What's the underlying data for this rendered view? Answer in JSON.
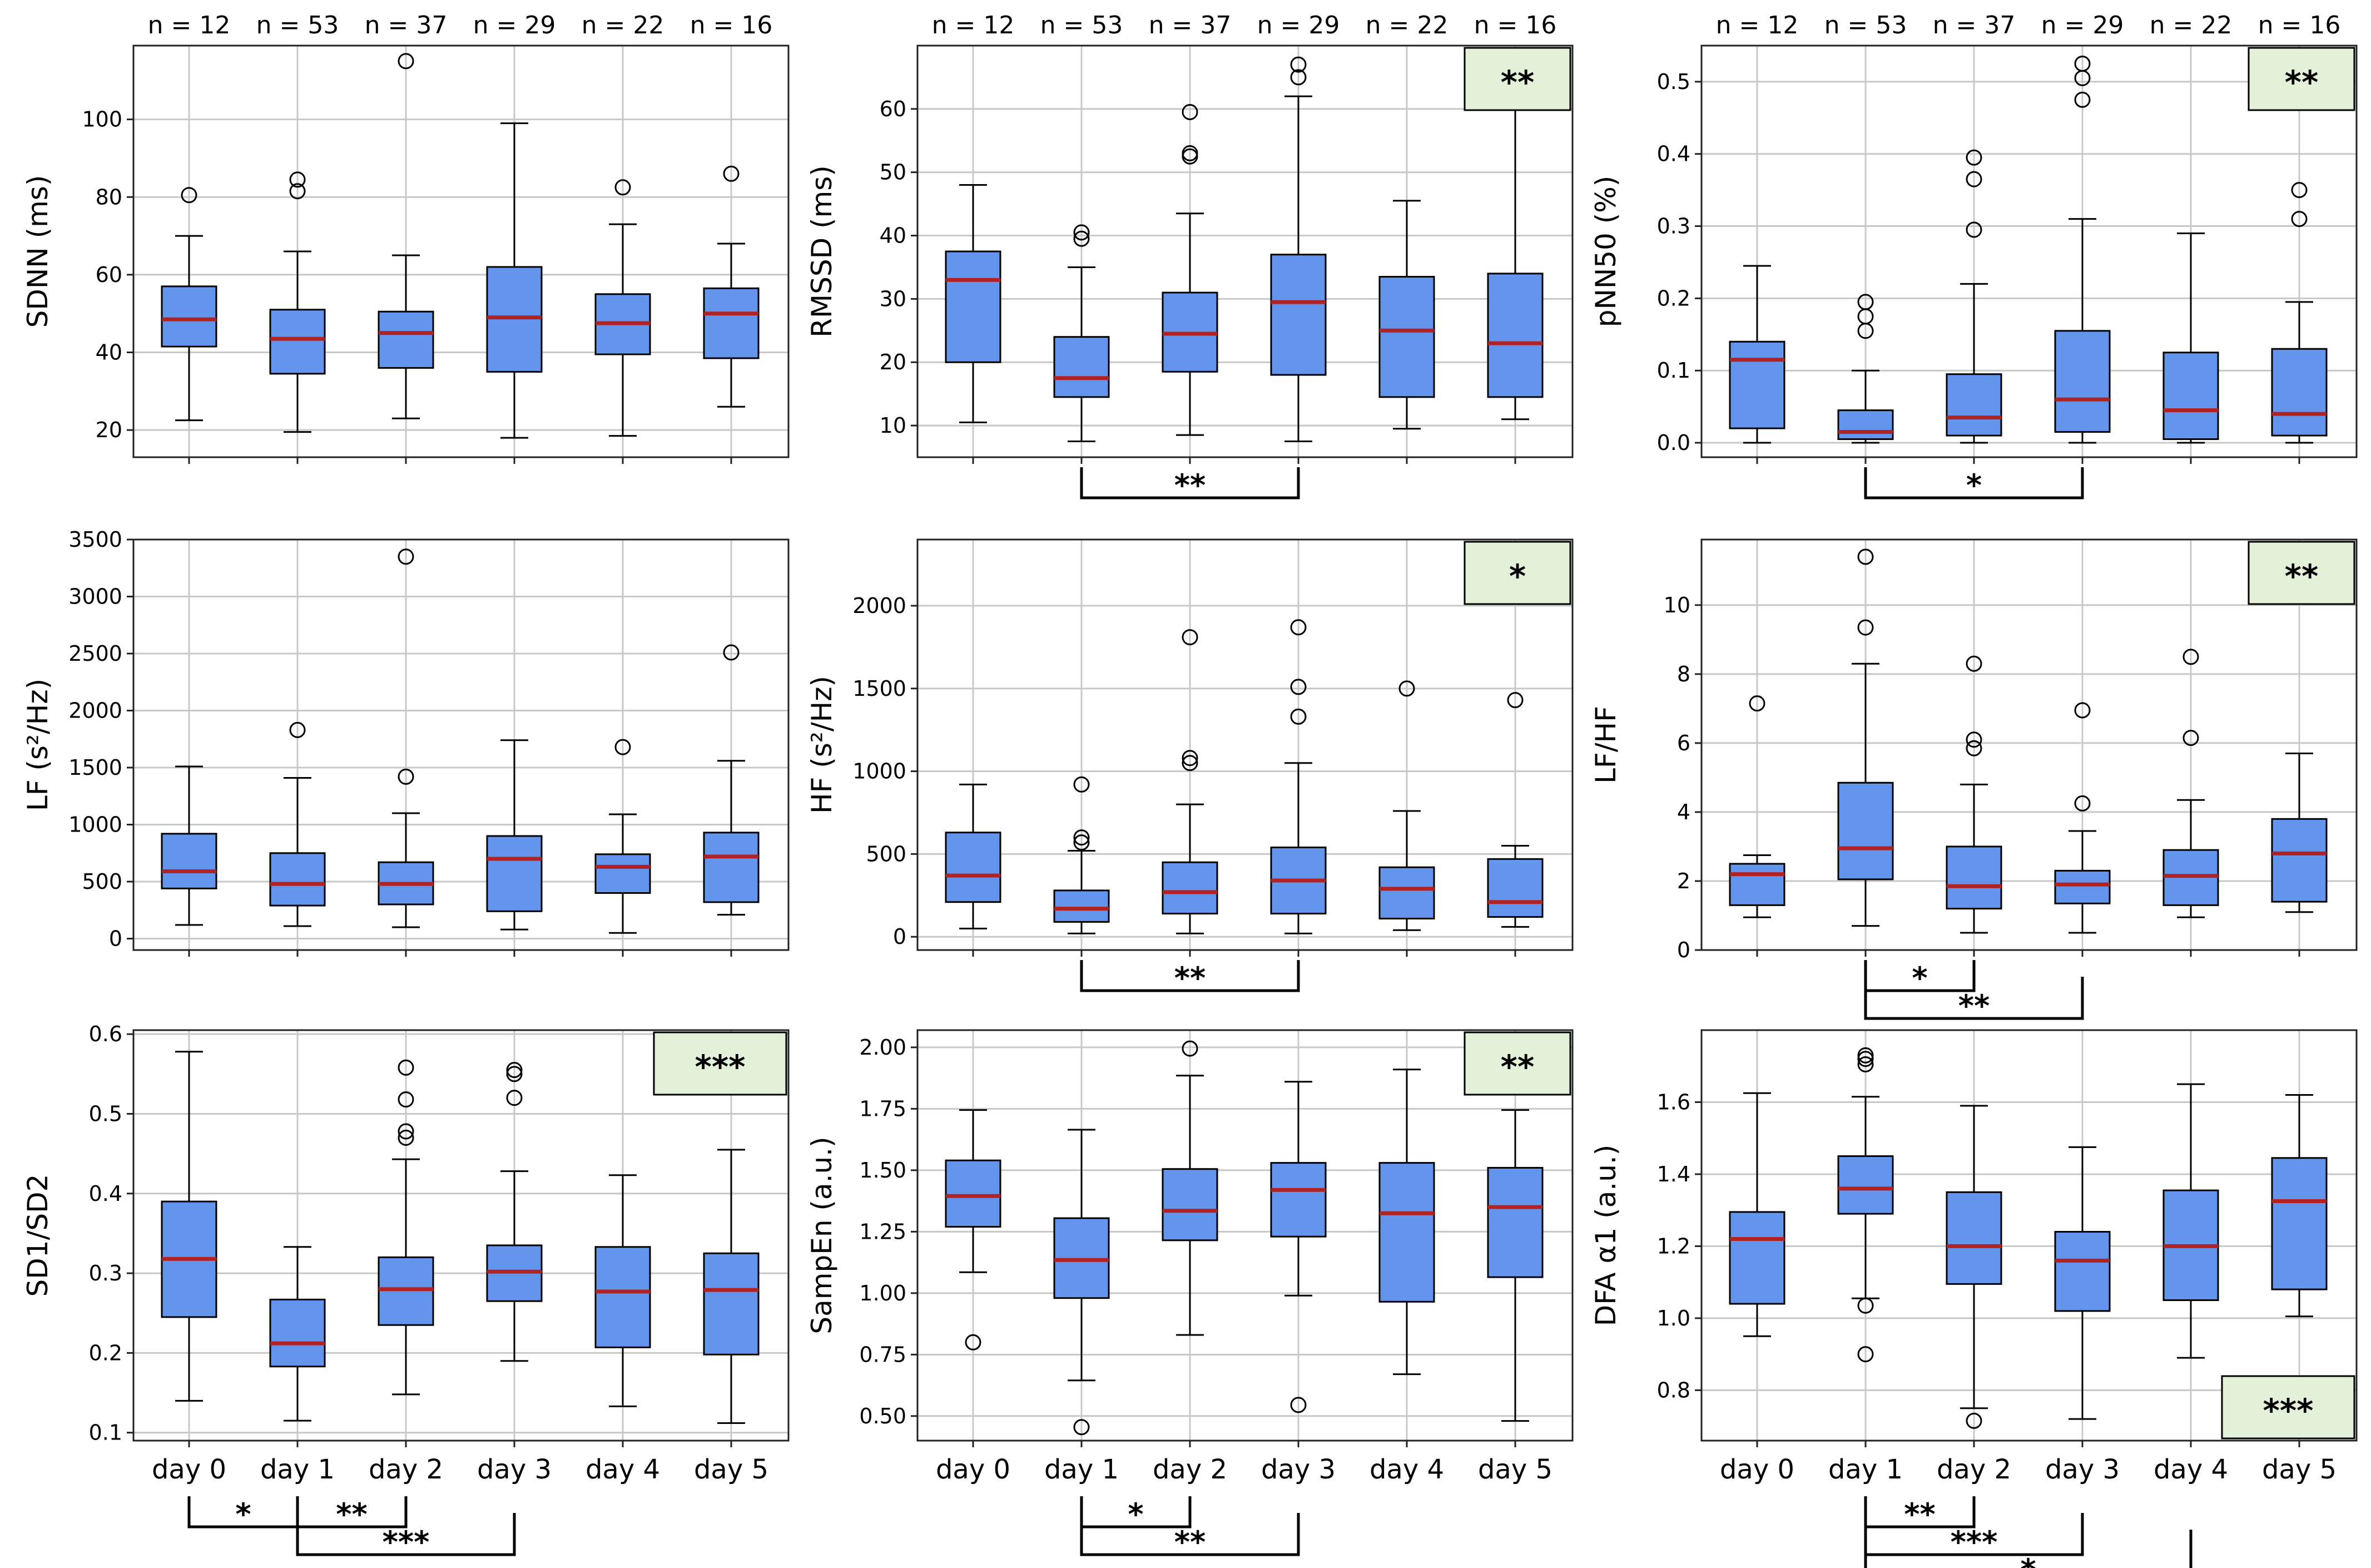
{
  "figure": {
    "days": [
      "day 0",
      "day 1",
      "day 2",
      "day 3",
      "day 4",
      "day 5"
    ],
    "n_labels": [
      "n = 12",
      "n = 53",
      "n = 37",
      "n = 29",
      "n = 22",
      "n = 16"
    ],
    "colors": {
      "box": "#6495ED",
      "median": "#B22222",
      "grid": "#c8c8c8",
      "badge": "#E3F1D9",
      "frame": "#222222"
    }
  },
  "chart_data": [
    {
      "id": "sdnn",
      "type": "box",
      "ylabel": "SDNN (ms)",
      "ylim": [
        13,
        119
      ],
      "yticks": [
        20,
        40,
        60,
        80,
        100
      ],
      "tick_labels": [
        "20",
        "40",
        "60",
        "80",
        "100"
      ],
      "boxes": [
        {
          "whislo": 22.5,
          "q1": 41.5,
          "med": 48.5,
          "q3": 57,
          "whishi": 70,
          "fliers": [
            80.5
          ]
        },
        {
          "whislo": 19.5,
          "q1": 34.5,
          "med": 43.5,
          "q3": 51,
          "whishi": 66,
          "fliers": [
            81.5,
            84.5
          ]
        },
        {
          "whislo": 23,
          "q1": 36,
          "med": 45,
          "q3": 50.5,
          "whishi": 65,
          "fliers": [
            115
          ]
        },
        {
          "whislo": 18,
          "q1": 35,
          "med": 49,
          "q3": 62,
          "whishi": 99,
          "fliers": []
        },
        {
          "whislo": 18.5,
          "q1": 39.5,
          "med": 47.5,
          "q3": 55,
          "whishi": 73,
          "fliers": [
            82.5
          ]
        },
        {
          "whislo": 26,
          "q1": 38.5,
          "med": 50,
          "q3": 56.5,
          "whishi": 68,
          "fliers": [
            86
          ]
        }
      ],
      "brackets": [],
      "badge": null
    },
    {
      "id": "rmssd",
      "type": "box",
      "ylabel": "RMSSD (ms)",
      "ylim": [
        5,
        70
      ],
      "yticks": [
        10,
        20,
        30,
        40,
        50,
        60
      ],
      "tick_labels": [
        "10",
        "20",
        "30",
        "40",
        "50",
        "60"
      ],
      "boxes": [
        {
          "whislo": 10.5,
          "q1": 20,
          "med": 33,
          "q3": 37.5,
          "whishi": 48,
          "fliers": []
        },
        {
          "whislo": 7.5,
          "q1": 14.5,
          "med": 17.5,
          "q3": 24,
          "whishi": 35,
          "fliers": [
            39.5,
            40.5
          ]
        },
        {
          "whislo": 8.5,
          "q1": 18.5,
          "med": 24.5,
          "q3": 31,
          "whishi": 43.5,
          "fliers": [
            52.5,
            53,
            59.5
          ]
        },
        {
          "whislo": 7.5,
          "q1": 18,
          "med": 29.5,
          "q3": 37,
          "whishi": 62,
          "fliers": [
            65,
            67
          ]
        },
        {
          "whislo": 9.5,
          "q1": 14.5,
          "med": 25,
          "q3": 33.5,
          "whishi": 45.5,
          "fliers": []
        },
        {
          "whislo": 11,
          "q1": 14.5,
          "med": 23,
          "q3": 34,
          "whishi": 60.5,
          "fliers": []
        }
      ],
      "brackets": [
        {
          "from": 1,
          "to": 3,
          "label": "**",
          "level": 0
        }
      ],
      "badge": {
        "label": "**",
        "pos": "top-right"
      }
    },
    {
      "id": "pnn50",
      "type": "box",
      "ylabel": "pNN50 (%)",
      "ylim": [
        -0.02,
        0.55
      ],
      "yticks": [
        0,
        0.1,
        0.2,
        0.3,
        0.4,
        0.5
      ],
      "tick_labels": [
        "0.0",
        "0.1",
        "0.2",
        "0.3",
        "0.4",
        "0.5"
      ],
      "boxes": [
        {
          "whislo": 0,
          "q1": 0.02,
          "med": 0.115,
          "q3": 0.14,
          "whishi": 0.245,
          "fliers": []
        },
        {
          "whislo": 0,
          "q1": 0.005,
          "med": 0.015,
          "q3": 0.045,
          "whishi": 0.1,
          "fliers": [
            0.155,
            0.175,
            0.195
          ]
        },
        {
          "whislo": 0,
          "q1": 0.01,
          "med": 0.035,
          "q3": 0.095,
          "whishi": 0.22,
          "fliers": [
            0.295,
            0.365,
            0.395
          ]
        },
        {
          "whislo": 0,
          "q1": 0.015,
          "med": 0.06,
          "q3": 0.155,
          "whishi": 0.31,
          "fliers": [
            0.475,
            0.505,
            0.525
          ]
        },
        {
          "whislo": 0,
          "q1": 0.005,
          "med": 0.045,
          "q3": 0.125,
          "whishi": 0.29,
          "fliers": []
        },
        {
          "whislo": 0,
          "q1": 0.01,
          "med": 0.04,
          "q3": 0.13,
          "whishi": 0.195,
          "fliers": [
            0.31,
            0.35
          ]
        }
      ],
      "brackets": [
        {
          "from": 1,
          "to": 3,
          "label": "*",
          "level": 0
        }
      ],
      "badge": {
        "label": "**",
        "pos": "top-right"
      }
    },
    {
      "id": "lf",
      "type": "box",
      "ylabel": "LF (s²/Hz)",
      "ylim": [
        -100,
        3500
      ],
      "yticks": [
        0,
        500,
        1000,
        1500,
        2000,
        2500,
        3000,
        3500
      ],
      "tick_labels": [
        "0",
        "500",
        "1000",
        "1500",
        "2000",
        "2500",
        "3000",
        "3500"
      ],
      "boxes": [
        {
          "whislo": 120,
          "q1": 440,
          "med": 590,
          "q3": 920,
          "whishi": 1510,
          "fliers": []
        },
        {
          "whislo": 110,
          "q1": 290,
          "med": 480,
          "q3": 750,
          "whishi": 1410,
          "fliers": [
            1830
          ]
        },
        {
          "whislo": 100,
          "q1": 300,
          "med": 480,
          "q3": 670,
          "whishi": 1100,
          "fliers": [
            1420,
            3350
          ]
        },
        {
          "whislo": 80,
          "q1": 240,
          "med": 700,
          "q3": 900,
          "whishi": 1740,
          "fliers": []
        },
        {
          "whislo": 50,
          "q1": 400,
          "med": 630,
          "q3": 740,
          "whishi": 1090,
          "fliers": [
            1680
          ]
        },
        {
          "whislo": 210,
          "q1": 320,
          "med": 720,
          "q3": 930,
          "whishi": 1560,
          "fliers": [
            2510
          ]
        }
      ],
      "brackets": [],
      "badge": null
    },
    {
      "id": "hf",
      "type": "box",
      "ylabel": "HF (s²/Hz)",
      "ylim": [
        -80,
        2400
      ],
      "yticks": [
        0,
        500,
        1000,
        1500,
        2000
      ],
      "tick_labels": [
        "0",
        "500",
        "1000",
        "1500",
        "2000"
      ],
      "boxes": [
        {
          "whislo": 50,
          "q1": 210,
          "med": 370,
          "q3": 630,
          "whishi": 920,
          "fliers": []
        },
        {
          "whislo": 20,
          "q1": 90,
          "med": 170,
          "q3": 280,
          "whishi": 520,
          "fliers": [
            570,
            600,
            920
          ]
        },
        {
          "whislo": 20,
          "q1": 140,
          "med": 270,
          "q3": 450,
          "whishi": 800,
          "fliers": [
            1050,
            1080,
            1810
          ]
        },
        {
          "whislo": 20,
          "q1": 140,
          "med": 340,
          "q3": 540,
          "whishi": 1050,
          "fliers": [
            1330,
            1510,
            1870
          ]
        },
        {
          "whislo": 40,
          "q1": 110,
          "med": 290,
          "q3": 420,
          "whishi": 760,
          "fliers": [
            1500
          ]
        },
        {
          "whislo": 60,
          "q1": 120,
          "med": 210,
          "q3": 470,
          "whishi": 550,
          "fliers": [
            1430
          ]
        }
      ],
      "brackets": [
        {
          "from": 1,
          "to": 3,
          "label": "**",
          "level": 0
        }
      ],
      "badge": {
        "label": "*",
        "pos": "top-right"
      }
    },
    {
      "id": "lfhf",
      "type": "box",
      "ylabel": "LF/HF",
      "ylim": [
        0,
        11.9
      ],
      "yticks": [
        0,
        2,
        4,
        6,
        8,
        10
      ],
      "tick_labels": [
        "0",
        "2",
        "4",
        "6",
        "8",
        "10"
      ],
      "boxes": [
        {
          "whislo": 0.95,
          "q1": 1.3,
          "med": 2.2,
          "q3": 2.5,
          "whishi": 2.75,
          "fliers": [
            7.15
          ]
        },
        {
          "whislo": 0.7,
          "q1": 2.05,
          "med": 2.95,
          "q3": 4.85,
          "whishi": 8.3,
          "fliers": [
            9.35,
            11.4
          ]
        },
        {
          "whislo": 0.5,
          "q1": 1.2,
          "med": 1.85,
          "q3": 3.0,
          "whishi": 4.8,
          "fliers": [
            5.85,
            6.1,
            8.3
          ]
        },
        {
          "whislo": 0.5,
          "q1": 1.35,
          "med": 1.9,
          "q3": 2.3,
          "whishi": 3.45,
          "fliers": [
            4.25,
            6.95
          ]
        },
        {
          "whislo": 0.95,
          "q1": 1.3,
          "med": 2.15,
          "q3": 2.9,
          "whishi": 4.35,
          "fliers": [
            6.15,
            8.5
          ]
        },
        {
          "whislo": 1.1,
          "q1": 1.4,
          "med": 2.8,
          "q3": 3.8,
          "whishi": 5.7,
          "fliers": []
        }
      ],
      "brackets": [
        {
          "from": 1,
          "to": 2,
          "label": "*",
          "level": 0
        },
        {
          "from": 1,
          "to": 3,
          "label": "**",
          "level": 1
        }
      ],
      "badge": {
        "label": "**",
        "pos": "top-right"
      }
    },
    {
      "id": "sd1sd2",
      "type": "box",
      "ylabel": "SD1/SD2",
      "ylim": [
        0.09,
        0.605
      ],
      "yticks": [
        0.1,
        0.2,
        0.3,
        0.4,
        0.5,
        0.6
      ],
      "tick_labels": [
        "0.1",
        "0.2",
        "0.3",
        "0.4",
        "0.5",
        "0.6"
      ],
      "boxes": [
        {
          "whislo": 0.14,
          "q1": 0.245,
          "med": 0.318,
          "q3": 0.39,
          "whishi": 0.578,
          "fliers": []
        },
        {
          "whislo": 0.115,
          "q1": 0.183,
          "med": 0.212,
          "q3": 0.267,
          "whishi": 0.333,
          "fliers": []
        },
        {
          "whislo": 0.148,
          "q1": 0.235,
          "med": 0.28,
          "q3": 0.32,
          "whishi": 0.443,
          "fliers": [
            0.47,
            0.478,
            0.518,
            0.558
          ]
        },
        {
          "whislo": 0.19,
          "q1": 0.265,
          "med": 0.302,
          "q3": 0.335,
          "whishi": 0.428,
          "fliers": [
            0.52,
            0.55,
            0.555
          ]
        },
        {
          "whislo": 0.133,
          "q1": 0.207,
          "med": 0.277,
          "q3": 0.333,
          "whishi": 0.423,
          "fliers": []
        },
        {
          "whislo": 0.112,
          "q1": 0.198,
          "med": 0.279,
          "q3": 0.325,
          "whishi": 0.455,
          "fliers": []
        }
      ],
      "brackets": [
        {
          "from": 0,
          "to": 1,
          "label": "*",
          "level": 0
        },
        {
          "from": 1,
          "to": 2,
          "label": "**",
          "level": 0
        },
        {
          "from": 1,
          "to": 3,
          "label": "***",
          "level": 1
        }
      ],
      "badge": {
        "label": "***",
        "pos": "top-right"
      }
    },
    {
      "id": "sampen",
      "type": "box",
      "ylabel": "SampEn (a.u.)",
      "ylim": [
        0.4,
        2.07
      ],
      "yticks": [
        0.5,
        0.75,
        1.0,
        1.25,
        1.5,
        1.75,
        2.0
      ],
      "tick_labels": [
        "0.50",
        "0.75",
        "1.00",
        "1.25",
        "1.50",
        "1.75",
        "2.00"
      ],
      "boxes": [
        {
          "whislo": 1.085,
          "q1": 1.27,
          "med": 1.395,
          "q3": 1.54,
          "whishi": 1.745,
          "fliers": [
            0.8
          ]
        },
        {
          "whislo": 0.645,
          "q1": 0.98,
          "med": 1.135,
          "q3": 1.305,
          "whishi": 1.665,
          "fliers": [
            0.455
          ]
        },
        {
          "whislo": 0.83,
          "q1": 1.215,
          "med": 1.335,
          "q3": 1.505,
          "whishi": 1.885,
          "fliers": [
            1.995
          ]
        },
        {
          "whislo": 0.99,
          "q1": 1.23,
          "med": 1.42,
          "q3": 1.53,
          "whishi": 1.86,
          "fliers": [
            0.545
          ]
        },
        {
          "whislo": 0.67,
          "q1": 0.965,
          "med": 1.325,
          "q3": 1.53,
          "whishi": 1.91,
          "fliers": []
        },
        {
          "whislo": 0.48,
          "q1": 1.065,
          "med": 1.35,
          "q3": 1.51,
          "whishi": 1.745,
          "fliers": []
        }
      ],
      "brackets": [
        {
          "from": 1,
          "to": 2,
          "label": "*",
          "level": 0
        },
        {
          "from": 1,
          "to": 3,
          "label": "**",
          "level": 1
        }
      ],
      "badge": {
        "label": "**",
        "pos": "top-right"
      }
    },
    {
      "id": "dfa",
      "type": "box",
      "ylabel": "DFA α1  (a.u.)",
      "ylim": [
        0.66,
        1.8
      ],
      "yticks": [
        0.8,
        1.0,
        1.2,
        1.4,
        1.6
      ],
      "tick_labels": [
        "0.8",
        "1.0",
        "1.2",
        "1.4",
        "1.6"
      ],
      "boxes": [
        {
          "whislo": 0.95,
          "q1": 1.04,
          "med": 1.22,
          "q3": 1.295,
          "whishi": 1.625,
          "fliers": []
        },
        {
          "whislo": 1.055,
          "q1": 1.29,
          "med": 1.36,
          "q3": 1.45,
          "whishi": 1.615,
          "fliers": [
            0.9,
            1.035,
            1.705,
            1.72,
            1.73
          ]
        },
        {
          "whislo": 0.75,
          "q1": 1.095,
          "med": 1.2,
          "q3": 1.35,
          "whishi": 1.59,
          "fliers": [
            0.715
          ]
        },
        {
          "whislo": 0.72,
          "q1": 1.02,
          "med": 1.16,
          "q3": 1.24,
          "whishi": 1.475,
          "fliers": []
        },
        {
          "whislo": 0.89,
          "q1": 1.05,
          "med": 1.2,
          "q3": 1.355,
          "whishi": 1.65,
          "fliers": []
        },
        {
          "whislo": 1.005,
          "q1": 1.08,
          "med": 1.325,
          "q3": 1.445,
          "whishi": 1.62,
          "fliers": []
        }
      ],
      "brackets": [
        {
          "from": 1,
          "to": 2,
          "label": "**",
          "level": 0
        },
        {
          "from": 1,
          "to": 3,
          "label": "***",
          "level": 1
        },
        {
          "from": 1,
          "to": 4,
          "label": "*",
          "level": 2
        }
      ],
      "badge": {
        "label": "***",
        "pos": "bottom-right"
      }
    }
  ]
}
